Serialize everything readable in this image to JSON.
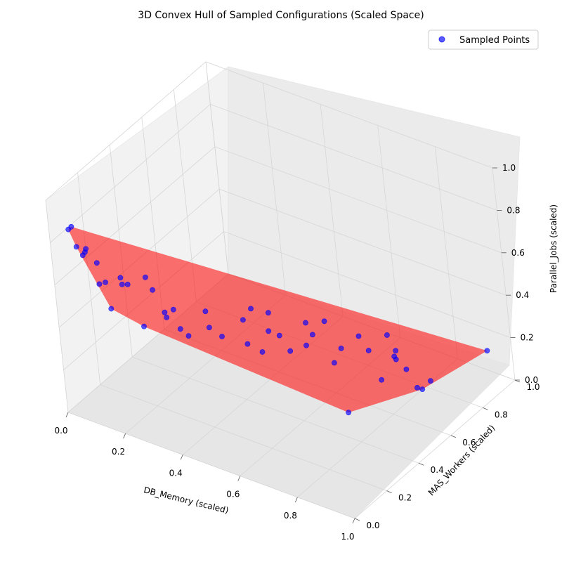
{
  "chart_data": {
    "type": "scatter",
    "title": "3D Convex Hull of Sampled Configurations (Scaled Space)",
    "xlabel": "DB_Memory (scaled)",
    "ylabel": "MAS_Workers (scaled)",
    "zlabel": "Parallel_Jobs (scaled)",
    "xlim": [
      0,
      1
    ],
    "ylim": [
      0,
      1
    ],
    "zlim": [
      0,
      1
    ],
    "x_ticks": [
      "0.0",
      "0.2",
      "0.4",
      "0.6",
      "0.8",
      "1.0"
    ],
    "y_ticks": [
      "0.0",
      "0.2",
      "0.4",
      "0.6",
      "0.8",
      "1.0"
    ],
    "z_ticks": [
      "0.0",
      "0.2",
      "0.4",
      "0.6",
      "0.8",
      "1.0"
    ],
    "grid": true,
    "legend_position": "top-right",
    "series": [
      {
        "name": "Sampled Points",
        "color": "#0000ff",
        "points": [
          [
            0.02,
            0.08,
            0.82
          ],
          [
            0.0,
            0.13,
            0.79
          ],
          [
            0.03,
            0.1,
            0.73
          ],
          [
            0.05,
            0.1,
            0.7
          ],
          [
            0.04,
            0.13,
            0.69
          ],
          [
            0.0,
            0.2,
            0.64
          ],
          [
            0.06,
            0.16,
            0.63
          ],
          [
            0.08,
            0.13,
            0.56
          ],
          [
            0.09,
            0.15,
            0.56
          ],
          [
            0.12,
            0.12,
            0.47
          ],
          [
            0.14,
            0.16,
            0.6
          ],
          [
            0.17,
            0.15,
            0.59
          ],
          [
            0.18,
            0.24,
            0.57
          ],
          [
            0.22,
            0.21,
            0.55
          ],
          [
            0.3,
            0.14,
            0.53
          ],
          [
            0.32,
            0.16,
            0.54
          ],
          [
            0.28,
            0.18,
            0.47
          ],
          [
            0.3,
            0.22,
            0.4
          ],
          [
            0.34,
            0.2,
            0.4
          ],
          [
            0.38,
            0.26,
            0.42
          ],
          [
            0.41,
            0.28,
            0.38
          ],
          [
            0.48,
            0.3,
            0.48
          ],
          [
            0.5,
            0.32,
            0.53
          ],
          [
            0.6,
            0.26,
            0.6
          ],
          [
            0.5,
            0.28,
            0.39
          ],
          [
            0.6,
            0.25,
            0.52
          ],
          [
            0.7,
            0.31,
            0.57
          ],
          [
            0.8,
            0.26,
            0.66
          ],
          [
            0.9,
            0.29,
            0.62
          ],
          [
            0.6,
            0.31,
            0.46
          ],
          [
            0.7,
            0.3,
            0.47
          ],
          [
            0.8,
            0.34,
            0.48
          ],
          [
            0.88,
            0.37,
            0.49
          ],
          [
            0.94,
            0.39,
            0.58
          ],
          [
            0.94,
            0.43,
            0.48
          ],
          [
            0.9,
            0.49,
            0.38
          ],
          [
            0.92,
            0.45,
            0.43
          ],
          [
            0.94,
            0.48,
            0.36
          ],
          [
            0.96,
            0.5,
            0.27
          ],
          [
            0.96,
            0.58,
            0.25
          ],
          [
            0.7,
            0.45,
            0.29
          ],
          [
            0.5,
            0.52,
            0.2
          ],
          [
            0.6,
            0.5,
            0.34
          ],
          [
            0.5,
            0.36,
            0.3
          ],
          [
            0.98,
            0.06,
            0.45
          ],
          [
            0.08,
            0.36,
            0.21
          ],
          [
            0.7,
            0.71,
            0.04
          ],
          [
            0.8,
            0.78,
            0.0
          ],
          [
            0.22,
            0.5,
            0.26
          ],
          [
            0.15,
            0.15,
            0.58
          ],
          [
            0.98,
            0.89,
            0.2
          ]
        ]
      }
    ],
    "hull": {
      "color": "#ff0000",
      "opacity": 0.55
    }
  }
}
